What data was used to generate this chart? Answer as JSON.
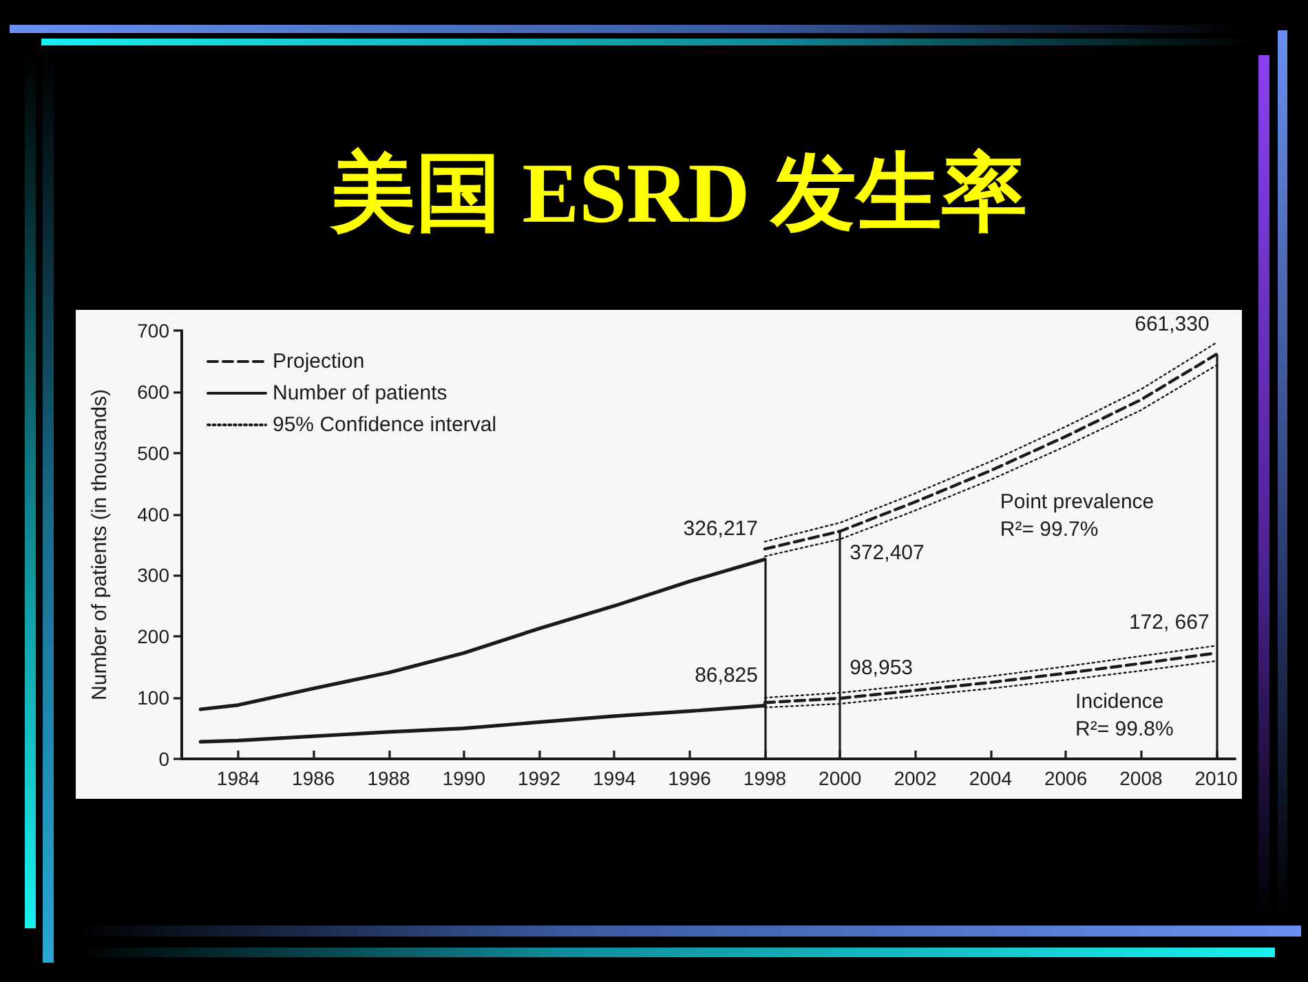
{
  "chart_data": {
    "type": "line",
    "title": "美国 ESRD 发生率",
    "ylabel": "Number of patients (in thousands)",
    "xlim": [
      1982.5,
      2010.5
    ],
    "xticks": [
      1984,
      1986,
      1988,
      1990,
      1992,
      1994,
      1996,
      1998,
      2000,
      2002,
      2004,
      2006,
      2008,
      2010
    ],
    "ylim": [
      0,
      700
    ],
    "yticks": [
      0,
      100,
      200,
      300,
      400,
      500,
      600,
      700
    ],
    "grid": false,
    "legend": "top left",
    "marker": "none",
    "series": [
      {
        "name": "Projection",
        "color": "#1a1a1a",
        "line_style": "dashed",
        "x": [
          1998,
          2000,
          2002,
          2004,
          2006,
          2008,
          2010
        ],
        "values": [
          343,
          372,
          420,
          471,
          527,
          587,
          661
        ]
      },
      {
        "color": "#1a1a1a",
        "line_style": "dashed",
        "x": [
          1998,
          2000,
          2002,
          2004,
          2006,
          2008,
          2010
        ],
        "values": [
          92,
          99,
          112,
          125,
          140,
          156,
          173
        ]
      },
      {
        "name": "Number of patients",
        "color": "#1a1a1a",
        "line_style": "solid",
        "x": [
          1983,
          1984,
          1986,
          1988,
          1990,
          1992,
          1994,
          1996,
          1998
        ],
        "values": [
          81,
          88,
          115,
          141,
          173,
          213,
          250,
          290,
          326
        ]
      },
      {
        "color": "#1a1a1a",
        "line_style": "solid",
        "x": [
          1983,
          1984,
          1986,
          1988,
          1990,
          1992,
          1994,
          1996,
          1998
        ],
        "values": [
          28,
          30,
          37,
          44,
          50,
          60,
          70,
          78,
          87
        ]
      },
      {
        "name": "95% Confidence interval",
        "color": "#1a1a1a",
        "line_style": "dotted",
        "x": [
          1998,
          2000,
          2002,
          2004,
          2006,
          2008,
          2010
        ],
        "values": [
          355,
          386,
          434,
          486,
          543,
          604,
          680
        ]
      },
      {
        "color": "#1a1a1a",
        "line_style": "dotted",
        "x": [
          1998,
          2000,
          2002,
          2004,
          2006,
          2008,
          2010
        ],
        "values": [
          331,
          359,
          406,
          456,
          511,
          570,
          643
        ]
      },
      {
        "color": "#1a1a1a",
        "line_style": "dotted",
        "x": [
          1998,
          2000,
          2002,
          2004,
          2006,
          2008,
          2010
        ],
        "values": [
          100,
          108,
          121,
          135,
          151,
          168,
          185
        ]
      },
      {
        "color": "#1a1a1a",
        "line_style": "dotted",
        "x": [
          1998,
          2000,
          2002,
          2004,
          2006,
          2008,
          2010
        ],
        "values": [
          84,
          90,
          103,
          115,
          129,
          144,
          160
        ]
      }
    ],
    "ref_lines": [
      {
        "axis": "x",
        "value": 1998
      },
      {
        "axis": "x",
        "value": 2000
      },
      {
        "axis": "x",
        "value": 2010
      }
    ],
    "annotations": [
      {
        "text": "326,217",
        "x": 1998,
        "y": 326
      },
      {
        "text": "86,825",
        "x": 1998,
        "y": 87
      },
      {
        "text": "372,407",
        "x": 2000,
        "y": 372
      },
      {
        "text": "98,953",
        "x": 2000,
        "y": 99
      },
      {
        "text": "661,330",
        "x": 2010,
        "y": 661
      },
      {
        "text": "172, 667",
        "x": 2010,
        "y": 173
      },
      {
        "text": "Point prevalence\nR²= 99.7%",
        "x": 2004,
        "y": 456
      },
      {
        "text": "Incidence\nR²= 99.8%",
        "x": 2006,
        "y": 129
      }
    ]
  }
}
